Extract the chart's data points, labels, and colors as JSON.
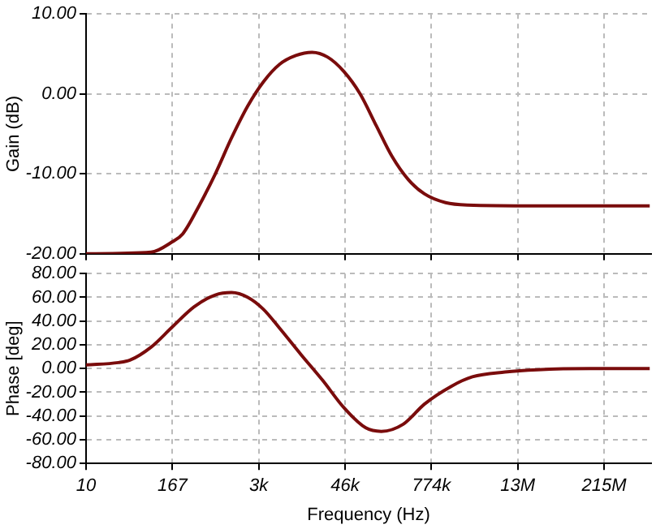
{
  "chart_data": [
    {
      "type": "line",
      "ylabel": "Gain (dB)",
      "log": "x",
      "grid": true,
      "tick_labels": "y",
      "xlim": [
        10,
        1000000000
      ],
      "xticks": [
        {
          "value": 10,
          "label": null
        },
        {
          "value": 166.8,
          "label": null
        },
        {
          "value": 2783,
          "label": null
        },
        {
          "value": 46416,
          "label": null
        },
        {
          "value": 774264,
          "label": null
        },
        {
          "value": 12915497,
          "label": null
        },
        {
          "value": 215443469,
          "label": null
        }
      ],
      "ylim": [
        -20,
        10
      ],
      "yticks": [
        {
          "value": -20,
          "label": "-20.00"
        },
        {
          "value": -10,
          "label": "-10.00"
        },
        {
          "value": 0,
          "label": "0.00"
        },
        {
          "value": 10,
          "label": "10.00"
        }
      ],
      "series": [
        {
          "color": "#7a0c0c",
          "x": [
            10,
            83.2,
            166,
            234,
            398,
            676,
            1148,
            1950,
            3236,
            5495,
            9333,
            15849,
            26303,
            44668,
            75858,
            128825,
            213796,
            363078,
            616595,
            1230269,
            2511886,
            24547089,
            954992586
          ],
          "values": [
            -20,
            -19.8,
            -18.5,
            -17.5,
            -14,
            -10,
            -5.5,
            -1.5,
            1.5,
            3.7,
            4.8,
            5.2,
            4.6,
            2.8,
            0,
            -4,
            -7.8,
            -10.7,
            -12.5,
            -13.6,
            -13.9,
            -14,
            -14
          ]
        }
      ]
    },
    {
      "type": "line",
      "ylabel": "Phase [deg]",
      "xlabel": "Frequency (Hz)",
      "log": "x",
      "grid": true,
      "xlim": [
        10,
        1000000000
      ],
      "xticks": [
        {
          "value": 10,
          "label": "10"
        },
        {
          "value": 166.8,
          "label": "167"
        },
        {
          "value": 2783,
          "label": "3k"
        },
        {
          "value": 46416,
          "label": "46k"
        },
        {
          "value": 774264,
          "label": "774k"
        },
        {
          "value": 12915497,
          "label": "13M"
        },
        {
          "value": 215443469,
          "label": "215M"
        }
      ],
      "ylim": [
        -80,
        80
      ],
      "yticks": [
        {
          "value": -80,
          "label": "-80.00"
        },
        {
          "value": -60,
          "label": "-60.00"
        },
        {
          "value": -40,
          "label": "-40.00"
        },
        {
          "value": -20,
          "label": "-20.00"
        },
        {
          "value": 0,
          "label": "0.00"
        },
        {
          "value": 20,
          "label": "20.00"
        },
        {
          "value": 40,
          "label": "40.00"
        },
        {
          "value": 60,
          "label": "60.00"
        },
        {
          "value": 80,
          "label": "80.00"
        }
      ],
      "series": [
        {
          "color": "#7a0c0c",
          "x": [
            10,
            28.8,
            41.7,
            83.2,
            166,
            339,
            676,
            1148,
            1950,
            3236,
            5495,
            10965,
            22387,
            44668,
            91201,
            151356,
            309030,
            616595,
            1479108,
            2951209,
            8511380,
            24547089,
            138038426,
            954992586
          ],
          "values": [
            3,
            5,
            7,
            18,
            35,
            52,
            62,
            64,
            60,
            50,
            34,
            12,
            -10,
            -33,
            -50,
            -53,
            -47,
            -30,
            -15,
            -7,
            -3,
            -1,
            0,
            0
          ]
        }
      ]
    }
  ]
}
